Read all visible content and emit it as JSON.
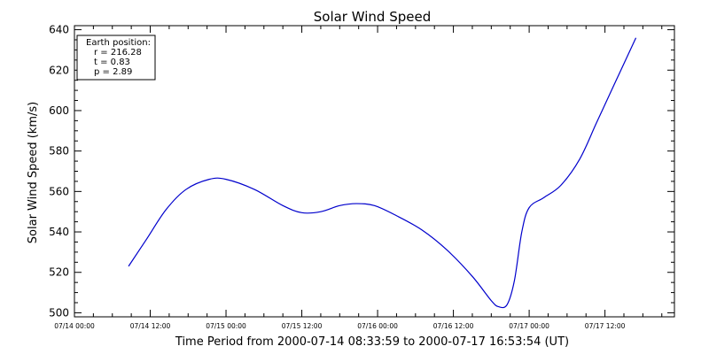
{
  "chart_data": {
    "type": "line",
    "title": "Solar Wind Speed",
    "xlabel": "Time Period from 2000-07-14 08:33:59 to 2000-07-17 16:53:54 (UT)",
    "ylabel": "Solar Wind Speed (km/s)",
    "ylim": [
      498,
      642
    ],
    "xlim": [
      "2000-07-14 00:00",
      "2000-07-17 23:00"
    ],
    "yticks": [
      500,
      520,
      540,
      560,
      580,
      600,
      620,
      640
    ],
    "xticks": [
      "07/14 00:00",
      "07/14 12:00",
      "07/15 00:00",
      "07/15 12:00",
      "07/16 00:00",
      "07/16 12:00",
      "07/17 00:00",
      "07/17 12:00"
    ],
    "grid": false,
    "series": [
      {
        "color": "#0000cc",
        "x": [
          "2000-07-14 08:34",
          "2000-07-14 11:20",
          "2000-07-14 14:30",
          "2000-07-14 17:40",
          "2000-07-14 21:20",
          "2000-07-15 00:00",
          "2000-07-15 04:30",
          "2000-07-15 09:00",
          "2000-07-15 12:00",
          "2000-07-15 15:00",
          "2000-07-15 18:00",
          "2000-07-15 20:40",
          "2000-07-15 23:30",
          "2000-07-16 03:00",
          "2000-07-16 07:00",
          "2000-07-16 11:00",
          "2000-07-16 15:00",
          "2000-07-16 18:00",
          "2000-07-16 19:10",
          "2000-07-16 20:30",
          "2000-07-16 21:40",
          "2000-07-16 22:50",
          "2000-07-17 00:00",
          "2000-07-17 02:20",
          "2000-07-17 05:00",
          "2000-07-17 08:00",
          "2000-07-17 10:40",
          "2000-07-17 13:20",
          "2000-07-17 16:54"
        ],
        "values": [
          523,
          536,
          551,
          561,
          566,
          566,
          561,
          553,
          549.5,
          550,
          553,
          554,
          553,
          548,
          541,
          531,
          518,
          506,
          503,
          504,
          516,
          540,
          552,
          557,
          563,
          576,
          594,
          612,
          636
        ]
      }
    ]
  },
  "info_box": {
    "heading": "Earth position:",
    "r": "r = 216.28",
    "t": "t = 0.83",
    "p": "p = 2.89"
  }
}
